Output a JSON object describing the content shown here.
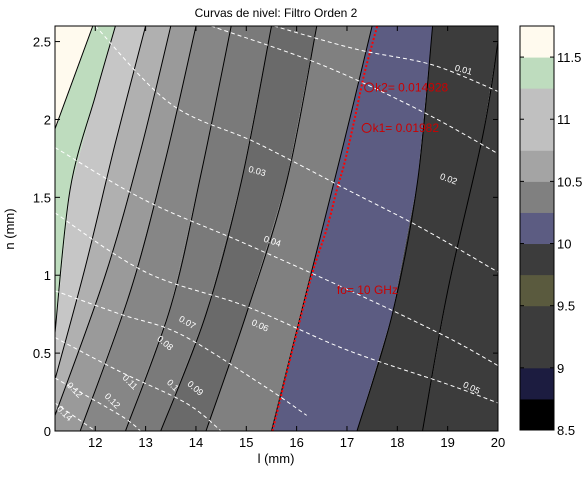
{
  "chart_data": {
    "type": "contour",
    "title": "Curvas de nivel: Filtro Orden 2",
    "xlabel": "l (mm)",
    "ylabel": "n (mm)",
    "xlim": [
      11.2,
      20
    ],
    "ylim": [
      0,
      2.6
    ],
    "xticks": [
      "12",
      "13",
      "14",
      "15",
      "16",
      "17",
      "18",
      "19",
      "20"
    ],
    "yticks": [
      "0",
      "0.5",
      "1",
      "1.5",
      "2",
      "2.5"
    ],
    "colorbar": {
      "range": [
        8.5,
        11.75
      ],
      "ticks": [
        "8.5",
        "9",
        "9.5",
        "10",
        "10.5",
        "11",
        "11.5"
      ],
      "bands": [
        {
          "from": 8.5,
          "to": 8.75,
          "color": "#000000"
        },
        {
          "from": 8.75,
          "to": 9.0,
          "color": "#1c1c40"
        },
        {
          "from": 9.0,
          "to": 9.25,
          "color": "#3c3c3c"
        },
        {
          "from": 9.25,
          "to": 9.5,
          "color": "#3c3c3c"
        },
        {
          "from": 9.5,
          "to": 9.75,
          "color": "#5a5a3e"
        },
        {
          "from": 9.75,
          "to": 10.0,
          "color": "#3c3c3c"
        },
        {
          "from": 10.0,
          "to": 10.25,
          "color": "#5c5c82"
        },
        {
          "from": 10.25,
          "to": 10.5,
          "color": "#808080"
        },
        {
          "from": 10.5,
          "to": 10.75,
          "color": "#a4a4a4"
        },
        {
          "from": 10.75,
          "to": 11.0,
          "color": "#c0c0c0"
        },
        {
          "from": 11.0,
          "to": 11.25,
          "color": "#c0c0c0"
        },
        {
          "from": 11.25,
          "to": 11.5,
          "color": "#bedcbe"
        },
        {
          "from": 11.5,
          "to": 11.75,
          "color": "#fffaee"
        }
      ]
    },
    "frequency_contours": {
      "color_order": [
        "#fffaee",
        "#bedcbe",
        "#c6c6c6",
        "#b0b0b0",
        "#9a9a9a",
        "#868686",
        "#7a7a7a",
        "#6a6a6a",
        "#808080",
        "#5c5c82",
        "#3c3c3c",
        "#3c3c3c",
        "#3c3c3c"
      ],
      "lines": [
        {
          "points": [
            [
              11.2,
              1.94
            ],
            [
              11.95,
              2.6
            ]
          ]
        },
        {
          "points": [
            [
              11.2,
              0.63
            ],
            [
              11.5,
              1.55
            ],
            [
              12.0,
              2.15
            ],
            [
              12.4,
              2.6
            ]
          ]
        },
        {
          "points": [
            [
              11.2,
              0.33
            ],
            [
              11.8,
              1.05
            ],
            [
              12.4,
              1.85
            ],
            [
              13.0,
              2.6
            ]
          ]
        },
        {
          "points": [
            [
              11.2,
              0.1
            ],
            [
              12.2,
              1.0
            ],
            [
              12.9,
              1.8
            ],
            [
              13.5,
              2.6
            ]
          ]
        },
        {
          "points": [
            [
              11.7,
              0.0
            ],
            [
              12.7,
              0.9
            ],
            [
              13.4,
              1.75
            ],
            [
              14.0,
              2.6
            ]
          ]
        },
        {
          "points": [
            [
              12.6,
              0.0
            ],
            [
              13.5,
              0.8
            ],
            [
              14.1,
              1.65
            ],
            [
              14.7,
              2.6
            ]
          ]
        },
        {
          "points": [
            [
              13.3,
              0.0
            ],
            [
              14.2,
              0.75
            ],
            [
              14.9,
              1.6
            ],
            [
              15.5,
              2.6
            ]
          ]
        },
        {
          "points": [
            [
              14.2,
              0.0
            ],
            [
              15.0,
              0.75
            ],
            [
              15.8,
              1.6
            ],
            [
              16.4,
              2.6
            ]
          ]
        },
        {
          "points": [
            [
              15.5,
              0.0
            ],
            [
              16.2,
              0.9
            ],
            [
              16.9,
              1.8
            ],
            [
              17.5,
              2.6
            ]
          ]
        },
        {
          "points": [
            [
              17.2,
              0.0
            ],
            [
              17.9,
              0.75
            ],
            [
              18.4,
              1.6
            ],
            [
              18.7,
              2.6
            ]
          ]
        },
        {
          "points": [
            [
              18.5,
              0.0
            ],
            [
              19.0,
              0.9
            ],
            [
              19.7,
              1.9
            ],
            [
              20.0,
              2.5
            ]
          ]
        }
      ]
    },
    "fo_line": {
      "color": "#ff0000",
      "style": "dotted",
      "points": [
        [
          15.52,
          0.0
        ],
        [
          15.9,
          0.5
        ],
        [
          16.3,
          1.0
        ],
        [
          16.6,
          1.3
        ],
        [
          16.8,
          1.55
        ],
        [
          16.95,
          1.72
        ],
        [
          17.15,
          2.0
        ],
        [
          17.35,
          2.3
        ],
        [
          17.6,
          2.6
        ]
      ]
    },
    "bandwidth_contours": {
      "color": "#ffffff",
      "style": "dashed",
      "lines": [
        {
          "points": [
            [
              15.55,
              2.6
            ],
            [
              17.2,
              2.45
            ],
            [
              18.7,
              2.35
            ],
            [
              20.0,
              2.18
            ]
          ]
        },
        {
          "points": [
            [
              14.3,
              2.6
            ],
            [
              16.5,
              2.35
            ],
            [
              18.5,
              2.05
            ],
            [
              20.0,
              1.78
            ]
          ]
        },
        {
          "points": [
            [
              12.0,
              2.6
            ],
            [
              13.5,
              2.1
            ],
            [
              15.2,
              1.85
            ],
            [
              17.0,
              1.55
            ],
            [
              18.5,
              1.3
            ],
            [
              20.0,
              1.02
            ]
          ]
        },
        {
          "points": [
            [
              11.2,
              1.82
            ],
            [
              13.0,
              1.48
            ],
            [
              15.0,
              1.2
            ],
            [
              17.2,
              0.88
            ],
            [
              19.0,
              0.6
            ],
            [
              20.0,
              0.42
            ]
          ]
        },
        {
          "points": [
            [
              11.2,
              1.4
            ],
            [
              13.0,
              1.02
            ],
            [
              15.0,
              0.8
            ],
            [
              17.0,
              0.52
            ],
            [
              19.0,
              0.3
            ],
            [
              20.0,
              0.18
            ]
          ]
        },
        {
          "points": [
            [
              11.2,
              0.9
            ],
            [
              12.5,
              0.75
            ],
            [
              13.7,
              0.62
            ],
            [
              15.3,
              0.3
            ],
            [
              16.2,
              0.1
            ]
          ]
        },
        {
          "points": [
            [
              11.2,
              0.6
            ],
            [
              12.5,
              0.38
            ],
            [
              13.8,
              0.18
            ],
            [
              14.5,
              0.0
            ]
          ]
        },
        {
          "points": [
            [
              11.2,
              0.34
            ],
            [
              12.5,
              0.1
            ],
            [
              12.9,
              0.0
            ]
          ]
        },
        {
          "points": [
            [
              11.2,
              0.18
            ],
            [
              12.0,
              0.0
            ]
          ]
        }
      ],
      "labels": [
        {
          "text": "0.01",
          "x": 19.3,
          "y": 2.3,
          "angle": 15
        },
        {
          "text": "0.02",
          "x": 19.0,
          "y": 1.6,
          "angle": 20
        },
        {
          "text": "0.03",
          "x": 15.2,
          "y": 1.65,
          "angle": 15
        },
        {
          "text": "0.04",
          "x": 15.5,
          "y": 1.2,
          "angle": 18
        },
        {
          "text": "0.05",
          "x": 19.45,
          "y": 0.26,
          "angle": 25
        },
        {
          "text": "0.06",
          "x": 15.25,
          "y": 0.66,
          "angle": 25
        },
        {
          "text": "0.07",
          "x": 13.8,
          "y": 0.68,
          "angle": 30
        },
        {
          "text": "0.08",
          "x": 13.35,
          "y": 0.55,
          "angle": 40
        },
        {
          "text": "0.09",
          "x": 13.95,
          "y": 0.26,
          "angle": 40
        },
        {
          "text": "0.1",
          "x": 13.5,
          "y": 0.28,
          "angle": 45
        },
        {
          "text": "0.11",
          "x": 12.65,
          "y": 0.3,
          "angle": 45
        },
        {
          "text": "0.12",
          "x": 11.55,
          "y": 0.25,
          "angle": 45
        },
        {
          "text": "0.12",
          "x": 12.3,
          "y": 0.18,
          "angle": 45
        },
        {
          "text": "0.14",
          "x": 11.35,
          "y": 0.1,
          "angle": 45
        }
      ]
    },
    "annotations": [
      {
        "text": "fo= 10 GHz",
        "x": 16.8,
        "y": 0.88,
        "color": "#cc0000",
        "marker": false
      },
      {
        "text": "k1= 0.01982",
        "x": 17.45,
        "y": 1.92,
        "color": "#cc0000",
        "marker": true
      },
      {
        "text": "k2= 0.014928",
        "x": 17.5,
        "y": 2.18,
        "color": "#cc0000",
        "marker": true
      }
    ]
  }
}
